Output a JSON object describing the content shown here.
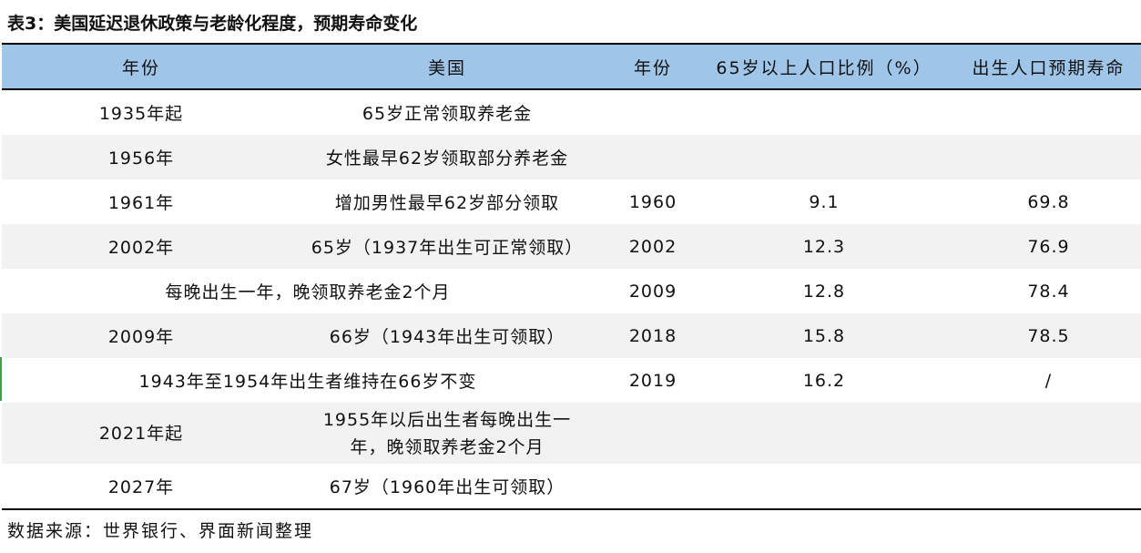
{
  "title": "表3：美国延迟退休政策与老龄化程度，预期寿命变化",
  "headers": [
    "年份",
    "美国",
    "年份",
    "65岁以上人口比例（%）",
    "出生人口预期寿命"
  ],
  "rows": [
    {
      "year": "1935年起",
      "policy": "65岁正常领取养老金",
      "stat_year": "",
      "elderly_pct": "",
      "life_exp": ""
    },
    {
      "year": "1956年",
      "policy": "女性最早62岁领取部分养老金",
      "stat_year": "",
      "elderly_pct": "",
      "life_exp": ""
    },
    {
      "year": "1961年",
      "policy": "增加男性最早62岁部分领取",
      "stat_year": "1960",
      "elderly_pct": "9.1",
      "life_exp": "69.8"
    },
    {
      "year": "2002年",
      "policy": "65岁（1937年出生可正常领取）",
      "stat_year": "2002",
      "elderly_pct": "12.3",
      "life_exp": "76.9"
    },
    {
      "merged": "每晚出生一年，晚领取养老金2个月",
      "stat_year": "2009",
      "elderly_pct": "12.8",
      "life_exp": "78.4"
    },
    {
      "year": "2009年",
      "policy": "66岁（1943年出生可领取）",
      "stat_year": "2018",
      "elderly_pct": "15.8",
      "life_exp": "78.5"
    },
    {
      "merged": "1943年至1954年出生者维持在66岁不变",
      "stat_year": "2019",
      "elderly_pct": "16.2",
      "life_exp": "/"
    },
    {
      "year": "2021年起",
      "policy_line1": "1955年以后出生者每晚出生一",
      "policy_line2": "年，晚领取养老金2个月",
      "stat_year": "",
      "elderly_pct": "",
      "life_exp": ""
    },
    {
      "year": "2027年",
      "policy": "67岁（1960年出生可领取）",
      "stat_year": "",
      "elderly_pct": "",
      "life_exp": ""
    }
  ],
  "source": "数据来源：世界银行、界面新闻整理"
}
